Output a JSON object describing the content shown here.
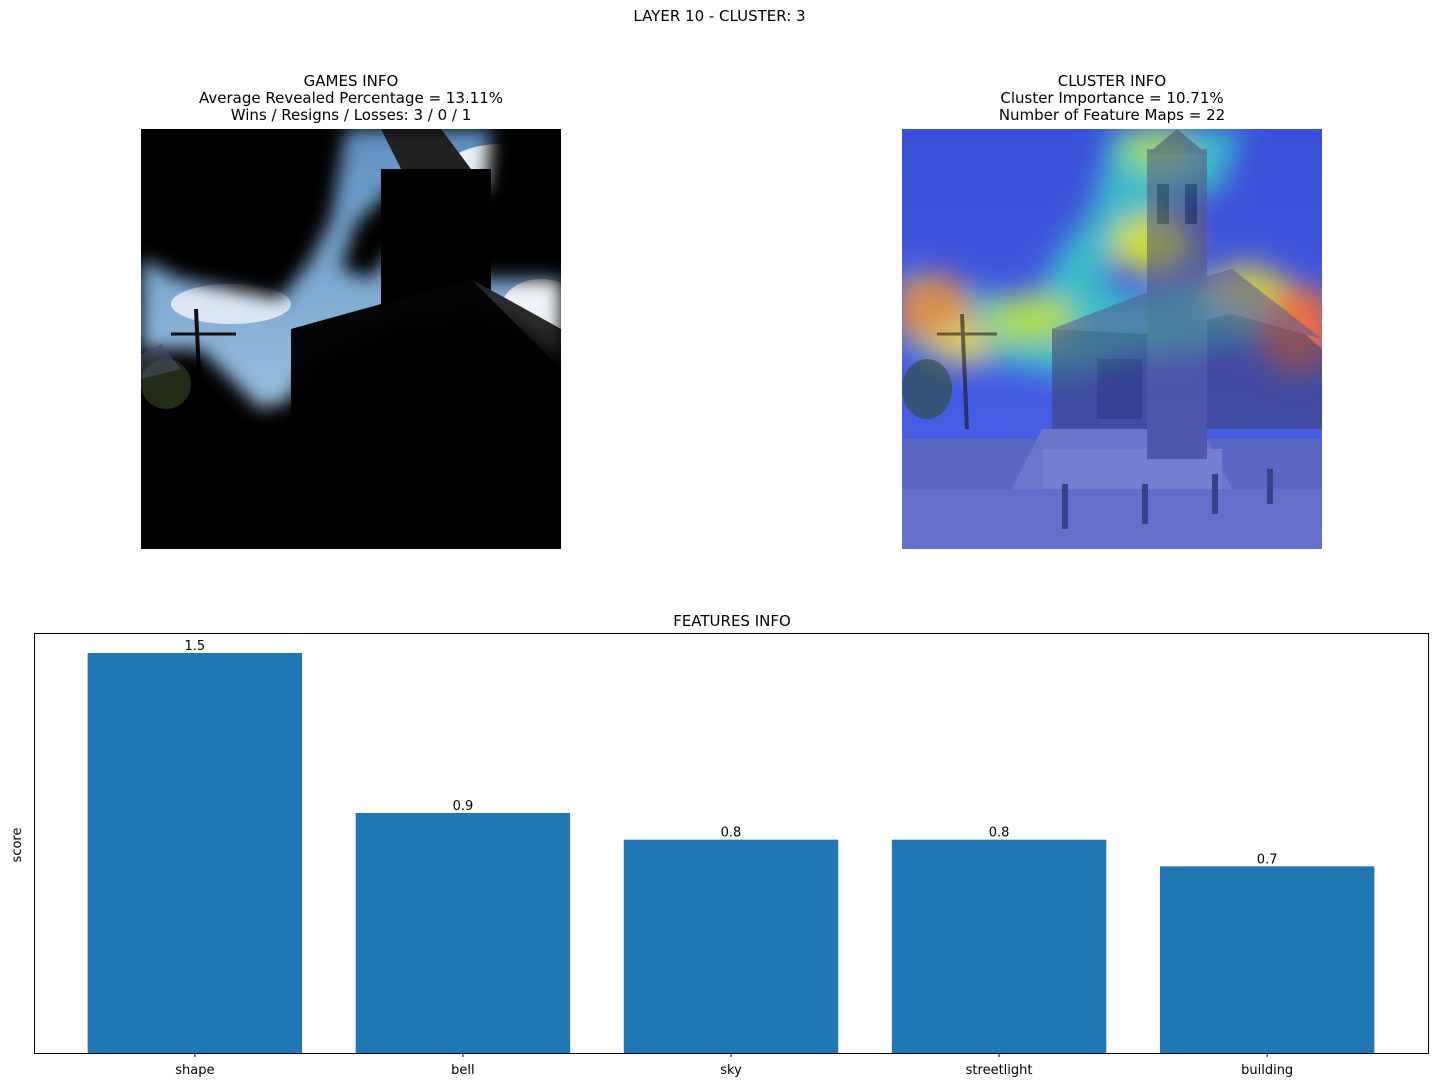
{
  "figure": {
    "suptitle": "LAYER 10 - CLUSTER: 3"
  },
  "games_info": {
    "title": "GAMES INFO",
    "line1": "Average Revealed Percentage = 13.11%",
    "line2": "Wins / Resigns / Losses: 3 / 0 / 1"
  },
  "cluster_info": {
    "title": "CLUSTER INFO",
    "line1": "Cluster Importance = 10.71%",
    "line2": "Number of Feature Maps = 22"
  },
  "chart_data": {
    "type": "bar",
    "title": "FEATURES INFO",
    "xlabel": "",
    "ylabel": "score",
    "categories": [
      "shape",
      "bell",
      "sky",
      "streetlight",
      "building"
    ],
    "values": [
      1.5,
      0.9,
      0.8,
      0.8,
      0.7
    ],
    "value_labels": [
      "1.5",
      "0.9",
      "0.8",
      "0.8",
      "0.7"
    ],
    "ylim": [
      0,
      1.575
    ],
    "y_ticks_visible": false,
    "bar_color": "#1f77b4",
    "grid": false
  }
}
